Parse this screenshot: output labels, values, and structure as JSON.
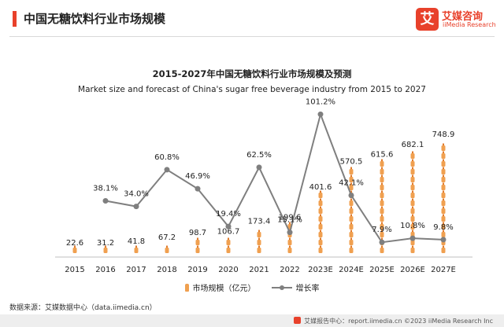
{
  "header": {
    "title": "中国无糖饮料行业市场规模",
    "accent_color": "#e8412b"
  },
  "logo": {
    "mark": "艾",
    "name_cn": "艾媒咨询",
    "name_en": "iiMedia Research",
    "color": "#e8412b"
  },
  "chart_data": {
    "type": "bar",
    "title": "2015-2027年中国无糖饮料行业市场规模及预测",
    "subtitle": "Market size and forecast of China's sugar free beverage industry from 2015 to 2027",
    "categories": [
      "2015",
      "2016",
      "2017",
      "2018",
      "2019",
      "2020",
      "2021",
      "2022",
      "2023E",
      "2024E",
      "2025E",
      "2026E",
      "2027E"
    ],
    "series": [
      {
        "name": "市场规模（亿元）",
        "type": "bar",
        "style": "bottle-pictograph",
        "color": "#f0a050",
        "values": [
          22.6,
          31.2,
          41.8,
          67.2,
          98.7,
          106.7,
          173.4,
          199.6,
          401.6,
          570.5,
          615.6,
          682.1,
          748.9
        ],
        "labels": [
          "22.6",
          "31.2",
          "41.8",
          "67.2",
          "98.7",
          "106.7",
          "173.4",
          "199.6",
          "401.6",
          "570.5",
          "615.6",
          "682.1",
          "748.9"
        ],
        "ylim": [
          0,
          780
        ]
      },
      {
        "name": "增长率",
        "type": "line",
        "color": "#7f7f7f",
        "values": [
          null,
          38.1,
          34.0,
          60.8,
          46.9,
          19.4,
          62.5,
          15.1,
          101.2,
          42.1,
          7.9,
          10.8,
          9.8
        ],
        "labels": [
          "",
          "38.1%",
          "34.0%",
          "60.8%",
          "46.9%",
          "19.4%",
          "62.5%",
          "15.1%",
          "101.2%",
          "42.1%",
          "7.9%",
          "10.8%",
          "9.8%"
        ],
        "ylim": [
          0,
          110
        ]
      }
    ],
    "xlabel": "",
    "ylabel": "",
    "grid": false,
    "legend": "bottom-center"
  },
  "legend": {
    "items": [
      {
        "label": "市场规模（亿元）",
        "kind": "bottle"
      },
      {
        "label": "增长率",
        "kind": "line"
      }
    ]
  },
  "source": "数据来源：艾媒数据中心（data.iimedia.cn）",
  "footer": {
    "text": "艾媒报告中心：report.iimedia.cn  ©2023  iiMedia Research  Inc"
  }
}
